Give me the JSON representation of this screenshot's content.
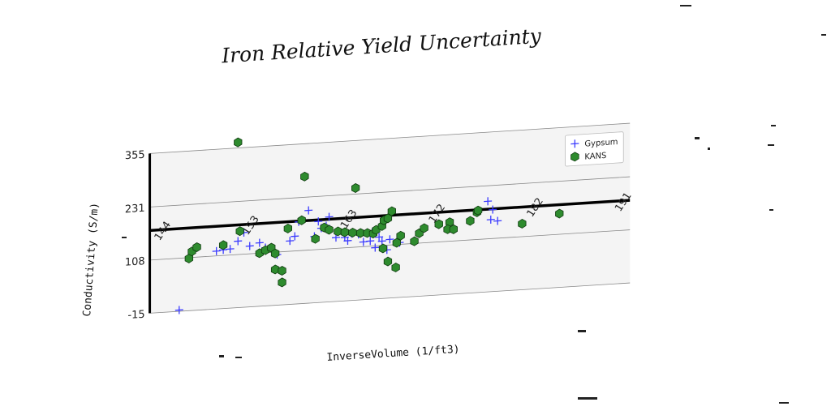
{
  "chart_data": {
    "type": "scatter",
    "title": "Iron Relative Yield Uncertainty",
    "xlabel": "InverseVolume (1/ft3)",
    "ylabel": "Conductivity (S/m)",
    "xlim": [
      143,
      192
    ],
    "ylim": [
      -15,
      355
    ],
    "x_ticks": [
      "144",
      "153",
      "163",
      "172",
      "182",
      "191"
    ],
    "y_ticks": [
      "-15",
      "108",
      "231",
      "355"
    ],
    "grid": true,
    "legend_position": "top-right",
    "series": [
      {
        "name": "Gypsum",
        "marker": "plus",
        "color": "#3a3aff",
        "points": [
          [
            146,
            -12
          ],
          [
            159.2,
            200
          ],
          [
            158.2,
            175
          ],
          [
            155.5,
            112
          ],
          [
            156.0,
            102
          ],
          [
            157.3,
            132
          ],
          [
            157.8,
            142
          ],
          [
            159.8,
            139
          ],
          [
            161.0,
            162
          ],
          [
            160.5,
            157
          ],
          [
            162.0,
            133
          ],
          [
            163.6,
            140
          ],
          [
            164.3,
            137
          ],
          [
            162.9,
            132
          ],
          [
            163.2,
            124
          ],
          [
            164.8,
            119
          ],
          [
            165.5,
            120
          ],
          [
            166.7,
            118
          ],
          [
            167.5,
            121
          ],
          [
            168.5,
            112
          ],
          [
            166.0,
            104
          ],
          [
            167.2,
            97
          ],
          [
            166.4,
            128
          ],
          [
            165.7,
            140
          ],
          [
            178.0,
            175
          ],
          [
            177.8,
            152
          ],
          [
            178.5,
            148
          ],
          [
            177.5,
            195
          ],
          [
            160.2,
            173
          ],
          [
            161.3,
            182
          ],
          [
            149.8,
            119
          ],
          [
            150.5,
            121
          ],
          [
            151.2,
            122
          ],
          [
            152.0,
            139
          ],
          [
            153.2,
            126
          ],
          [
            154.8,
            120
          ],
          [
            152.6,
            158
          ],
          [
            154.2,
            132
          ]
        ]
      },
      {
        "name": "KANS",
        "marker": "hexagon",
        "color": "#2e8b2e",
        "points": [
          [
            152.0,
            368
          ],
          [
            147.0,
            106
          ],
          [
            147.3,
            122
          ],
          [
            147.8,
            131
          ],
          [
            150.5,
            132
          ],
          [
            152.2,
            162
          ],
          [
            154.2,
            108
          ],
          [
            154.8,
            114
          ],
          [
            155.4,
            119
          ],
          [
            155.8,
            105
          ],
          [
            155.8,
            68
          ],
          [
            156.5,
            64
          ],
          [
            156.5,
            37
          ],
          [
            157.1,
            161
          ],
          [
            158.5,
            178
          ],
          [
            158.8,
            279
          ],
          [
            159.9,
            133
          ],
          [
            160.8,
            158
          ],
          [
            161.3,
            152
          ],
          [
            162.2,
            147
          ],
          [
            162.9,
            144
          ],
          [
            163.7,
            142
          ],
          [
            164.5,
            140
          ],
          [
            165.2,
            139
          ],
          [
            164.0,
            245
          ],
          [
            165.8,
            137
          ],
          [
            166.1,
            145
          ],
          [
            166.7,
            153
          ],
          [
            166.9,
            166
          ],
          [
            167.3,
            170
          ],
          [
            167.7,
            186
          ],
          [
            166.8,
            101
          ],
          [
            168.2,
            112
          ],
          [
            167.3,
            70
          ],
          [
            168.1,
            55
          ],
          [
            168.6,
            128
          ],
          [
            170.0,
            113
          ],
          [
            170.5,
            131
          ],
          [
            171.0,
            142
          ],
          [
            172.5,
            149
          ],
          [
            173.6,
            152
          ],
          [
            173.4,
            136
          ],
          [
            174.0,
            135
          ],
          [
            175.7,
            152
          ],
          [
            176.4,
            171
          ],
          [
            181.0,
            138
          ],
          [
            184.8,
            156
          ],
          [
            176.5,
            175
          ]
        ]
      }
    ]
  }
}
